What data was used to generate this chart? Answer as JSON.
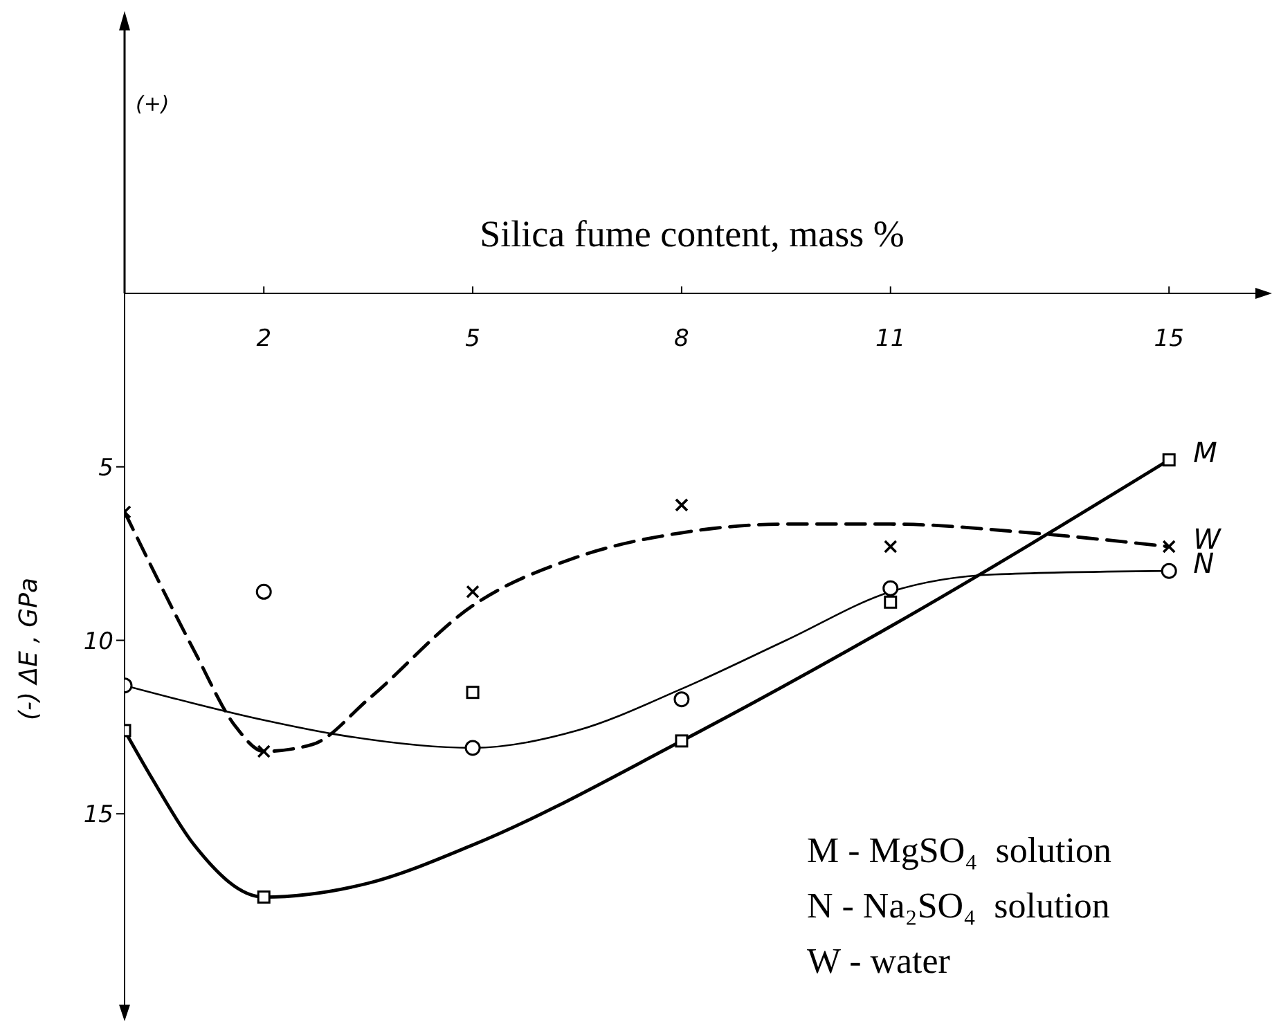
{
  "chart_data": {
    "type": "scatter",
    "xlabel": "Silica fume content, mass %",
    "ylabel": "(-) ΔE , GPa",
    "annotations": [
      "(+)",
      "M - MgSO₄  solution",
      "N - Na₂SO₄  solution",
      "W - water"
    ],
    "xlim": [
      0,
      16.3
    ],
    "ylim": [
      20.5,
      0
    ],
    "xticks": [
      2,
      5,
      8,
      11,
      15
    ],
    "yticks": [
      5,
      10,
      15
    ],
    "series": [
      {
        "name": "M",
        "marker": "square",
        "color": "#000000",
        "x": [
          0,
          2,
          5,
          8,
          11,
          15
        ],
        "values": [
          12.6,
          17.4,
          11.5,
          12.9,
          8.9,
          4.8
        ]
      },
      {
        "name": "W",
        "marker": "cross",
        "color": "#000000",
        "x": [
          0,
          2,
          5,
          8,
          11,
          15
        ],
        "values": [
          6.3,
          13.2,
          8.6,
          6.1,
          7.3,
          7.3
        ]
      },
      {
        "name": "N",
        "marker": "circle",
        "color": "#000000",
        "x": [
          0,
          2,
          5,
          8,
          11,
          15
        ],
        "values": [
          11.3,
          8.6,
          13.1,
          11.7,
          8.5,
          8.0
        ]
      },
      {
        "type": "line",
        "line_style": "solid",
        "marker": "none",
        "color": "#000000",
        "x": [
          0,
          0.4,
          1,
          2,
          3.5,
          5,
          8,
          11,
          15
        ],
        "values": [
          12.6,
          14.0,
          15.9,
          17.4,
          17.0,
          15.9,
          12.9,
          9.6,
          4.8
        ]
      },
      {
        "type": "line",
        "line_style": "dashed",
        "marker": "none",
        "color": "#000000",
        "x": [
          0,
          1,
          1.6,
          2,
          2.7,
          3.5,
          5,
          6.5,
          8,
          9.5,
          11,
          13,
          15
        ],
        "values": [
          6.3,
          10.3,
          12.5,
          13.2,
          13.0,
          11.7,
          9.0,
          7.6,
          6.9,
          6.65,
          6.65,
          6.9,
          7.3
        ]
      },
      {
        "type": "line",
        "line_style": "solid",
        "marker": "none",
        "color": "#000000",
        "x": [
          0,
          2,
          3,
          5,
          6.5,
          8,
          9.5,
          11,
          12.5,
          15
        ],
        "values": [
          11.3,
          12.3,
          12.7,
          13.1,
          12.6,
          11.4,
          10.0,
          8.6,
          8.1,
          8.0
        ]
      }
    ]
  }
}
